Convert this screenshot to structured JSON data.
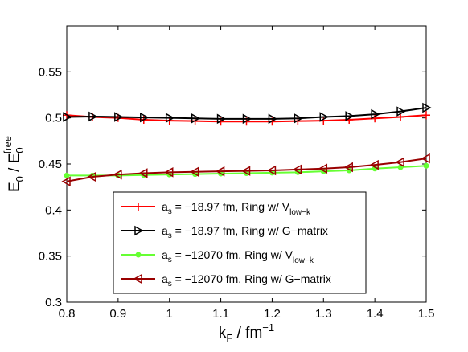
{
  "chart_data": {
    "type": "line",
    "x": [
      0.8,
      0.85,
      0.9,
      0.95,
      1.0,
      1.05,
      1.1,
      1.15,
      1.2,
      1.25,
      1.3,
      1.35,
      1.4,
      1.45,
      1.5
    ],
    "xlim": [
      0.8,
      1.5
    ],
    "ylim": [
      0.3,
      0.6
    ],
    "xticks": [
      0.8,
      0.9,
      1.0,
      1.1,
      1.2,
      1.3,
      1.4,
      1.5
    ],
    "xtick_labels": [
      "0.8",
      "0.9",
      "1",
      "1.1",
      "1.2",
      "1.3",
      "1.4",
      "1.5"
    ],
    "yticks": [
      0.3,
      0.35,
      0.4,
      0.45,
      0.5,
      0.55
    ],
    "ytick_labels": [
      "0.3",
      "0.35",
      "0.4",
      "0.45",
      "0.5",
      "0.55"
    ],
    "xlabel": {
      "main": "k",
      "sub": "F",
      "rest": " / fm",
      "sup": "−1"
    },
    "ylabel": {
      "main": "E",
      "sub": "0",
      "rest": " / E",
      "sub2": "0",
      "sup2": "free"
    },
    "grid": false,
    "legend_position": "lower-center",
    "series": [
      {
        "name": "a_s = −18.97 fm, Ring w/ V_low−k",
        "legend": {
          "pre": "a",
          "sub": "s",
          "mid": " = −18.97 fm, Ring w/ V",
          "sub2": "low−k"
        },
        "color": "#ff0000",
        "marker": "plus",
        "values": [
          0.503,
          0.501,
          0.5,
          0.498,
          0.497,
          0.4965,
          0.496,
          0.496,
          0.496,
          0.4965,
          0.497,
          0.498,
          0.4995,
          0.501,
          0.503
        ]
      },
      {
        "name": "a_s = −18.97 fm, Ring w/ G−matrix",
        "legend": {
          "pre": "a",
          "sub": "s",
          "mid": " = −18.97 fm, Ring w/ G−matrix",
          "sub2": ""
        },
        "color": "#000000",
        "marker": "triangle-right",
        "values": [
          0.501,
          0.5015,
          0.501,
          0.5005,
          0.5,
          0.4995,
          0.499,
          0.499,
          0.499,
          0.4995,
          0.501,
          0.502,
          0.504,
          0.507,
          0.511
        ]
      },
      {
        "name": "a_s = −12070 fm, Ring w/ V_low−k",
        "legend": {
          "pre": "a",
          "sub": "s",
          "mid": " = −12070 fm, Ring w/ V",
          "sub2": "low−k"
        },
        "color": "#66ff33",
        "marker": "circle",
        "values": [
          0.4375,
          0.4375,
          0.4375,
          0.438,
          0.4385,
          0.439,
          0.4395,
          0.44,
          0.4405,
          0.441,
          0.442,
          0.443,
          0.445,
          0.4465,
          0.448
        ]
      },
      {
        "name": "a_s = −12070 fm, Ring w/ G−matrix",
        "legend": {
          "pre": "a",
          "sub": "s",
          "mid": " = −12070 fm, Ring w/ G−matrix",
          "sub2": ""
        },
        "color": "#990000",
        "marker": "triangle-left",
        "values": [
          0.431,
          0.436,
          0.4385,
          0.44,
          0.441,
          0.4415,
          0.442,
          0.4425,
          0.443,
          0.444,
          0.445,
          0.4465,
          0.449,
          0.452,
          0.456
        ]
      }
    ]
  }
}
